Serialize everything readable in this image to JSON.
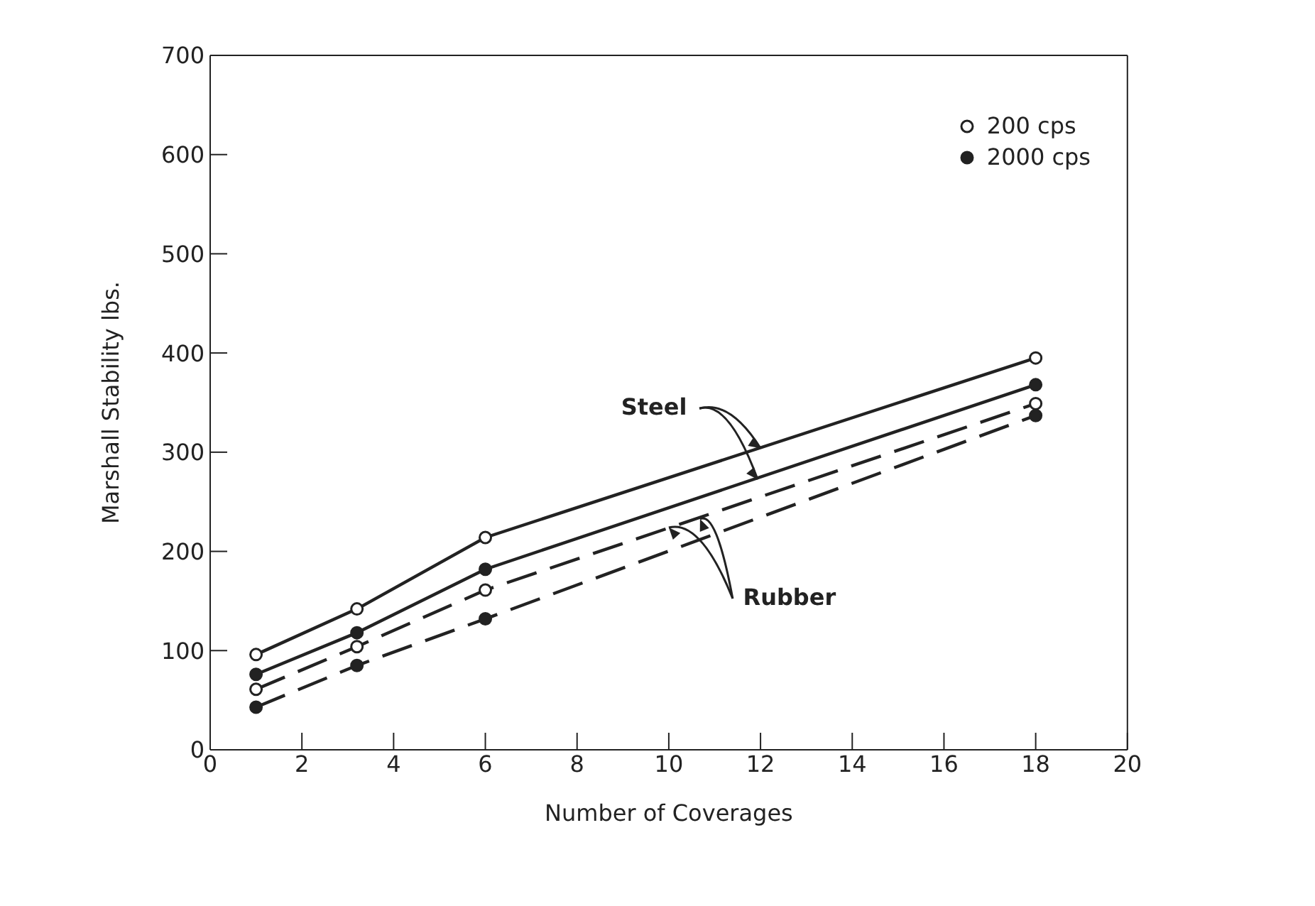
{
  "chart_data": {
    "type": "line",
    "xlabel": "Number of Coverages",
    "ylabel": "Marshall Stability lbs.",
    "xlim": [
      0,
      20
    ],
    "xticks": [
      0,
      2,
      4,
      6,
      8,
      10,
      12,
      14,
      16,
      18,
      20
    ],
    "ylim": [
      0,
      700
    ],
    "yticks": [
      0,
      100,
      200,
      300,
      400,
      500,
      600,
      700
    ],
    "grid": false,
    "legend": "top right",
    "marker": "none",
    "series": [
      {
        "color": "#222222",
        "line_style": "solid",
        "x": [
          1,
          3.2,
          6,
          18
        ],
        "values": [
          96,
          142,
          214,
          395
        ]
      },
      {
        "color": "#222222",
        "line_style": "solid",
        "x": [
          1,
          3.2,
          6,
          18
        ],
        "values": [
          76,
          118,
          182,
          368
        ]
      },
      {
        "color": "#222222",
        "line_style": "dashed",
        "x": [
          1,
          3.2,
          6,
          18
        ],
        "values": [
          61,
          104,
          161,
          349
        ]
      },
      {
        "color": "#222222",
        "line_style": "dashed",
        "x": [
          1,
          3.2,
          6,
          18
        ],
        "values": [
          43,
          85,
          132,
          337
        ]
      },
      {
        "type": "scatter",
        "name": "200 cps",
        "color": "#ffffff",
        "marker": "circle",
        "x": [
          1,
          3.2,
          6,
          18,
          1,
          3.2,
          6,
          18
        ],
        "values": [
          96,
          142,
          214,
          395,
          61,
          104,
          161,
          349
        ]
      },
      {
        "type": "scatter",
        "name": "2000 cps",
        "color": "#222222",
        "marker": "circle",
        "x": [
          1,
          3.2,
          6,
          18,
          1,
          3.2,
          6,
          18
        ],
        "values": [
          76,
          118,
          182,
          368,
          43,
          85,
          132,
          337
        ]
      }
    ],
    "annotations": [
      {
        "text": "Steel",
        "x": 12,
        "y": 304
      },
      {
        "text": "Rubber",
        "x": 10,
        "y": 224
      }
    ]
  }
}
